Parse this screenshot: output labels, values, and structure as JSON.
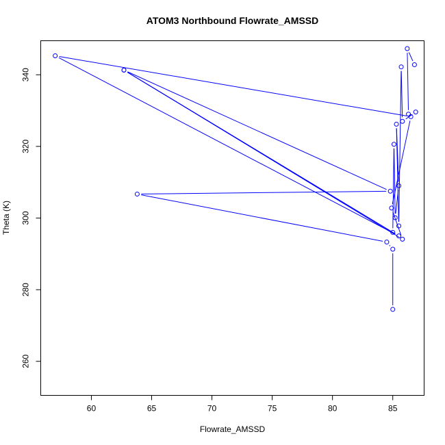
{
  "chart_data": {
    "type": "line",
    "title": "ATOM3 Northbound Flowrate_AMSSD",
    "xlabel": "Flowrate_AMSSD",
    "ylabel": "Theta (K)",
    "xlim": [
      55.8,
      87.6
    ],
    "ylim": [
      250.5,
      349.5
    ],
    "x_ticks": [
      60,
      65,
      70,
      75,
      80,
      85
    ],
    "y_ticks": [
      260,
      280,
      300,
      320,
      340
    ],
    "grid": false,
    "legend": "none",
    "line_color": "#0000ff",
    "marker": "open-circle",
    "series": [
      {
        "points": [
          {
            "x": 85.0,
            "y": 274.5
          },
          {
            "x": 85.0,
            "y": 291.3
          },
          {
            "x": 84.5,
            "y": 293.3
          },
          {
            "x": 63.8,
            "y": 306.7
          },
          {
            "x": 84.8,
            "y": 307.5
          },
          {
            "x": 62.7,
            "y": 341.3
          },
          {
            "x": 85.5,
            "y": 295.0
          },
          {
            "x": 57.0,
            "y": 345.3
          },
          {
            "x": 86.5,
            "y": 328.3
          },
          {
            "x": 84.9,
            "y": 302.8
          },
          {
            "x": 85.8,
            "y": 294.1
          },
          {
            "x": 62.7,
            "y": 341.3
          },
          {
            "x": 85.0,
            "y": 296.0
          },
          {
            "x": 85.1,
            "y": 320.6
          },
          {
            "x": 85.2,
            "y": 300.1
          },
          {
            "x": 85.5,
            "y": 309.0
          },
          {
            "x": 85.3,
            "y": 326.2
          },
          {
            "x": 85.5,
            "y": 297.8
          },
          {
            "x": 85.7,
            "y": 342.2
          },
          {
            "x": 85.8,
            "y": 327.0
          },
          {
            "x": 86.9,
            "y": 329.6
          },
          {
            "x": 86.3,
            "y": 329.0
          },
          {
            "x": 86.2,
            "y": 347.3
          },
          {
            "x": 86.8,
            "y": 342.8
          }
        ]
      }
    ]
  }
}
